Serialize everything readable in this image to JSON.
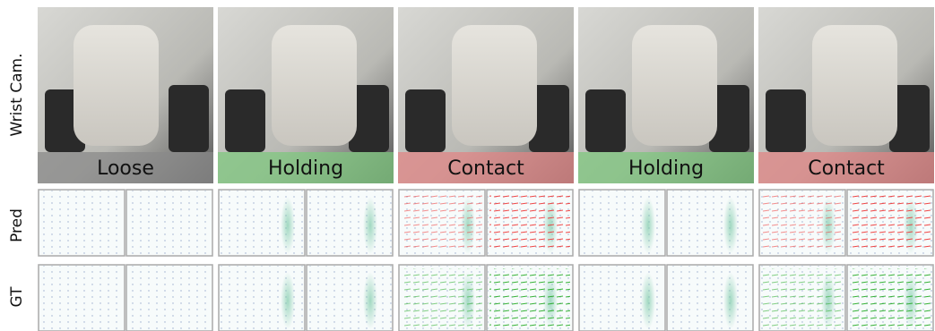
{
  "row_labels": [
    "Wrist Cam.",
    "Pred",
    "GT"
  ],
  "columns": [
    {
      "label": "Loose",
      "color": "#8a8a8a"
    },
    {
      "label": "Holding",
      "color": "#7fc77f"
    },
    {
      "label": "Contact",
      "color": "#e08585"
    },
    {
      "label": "Holding",
      "color": "#7fc77f"
    },
    {
      "label": "Contact",
      "color": "#e08585"
    }
  ]
}
